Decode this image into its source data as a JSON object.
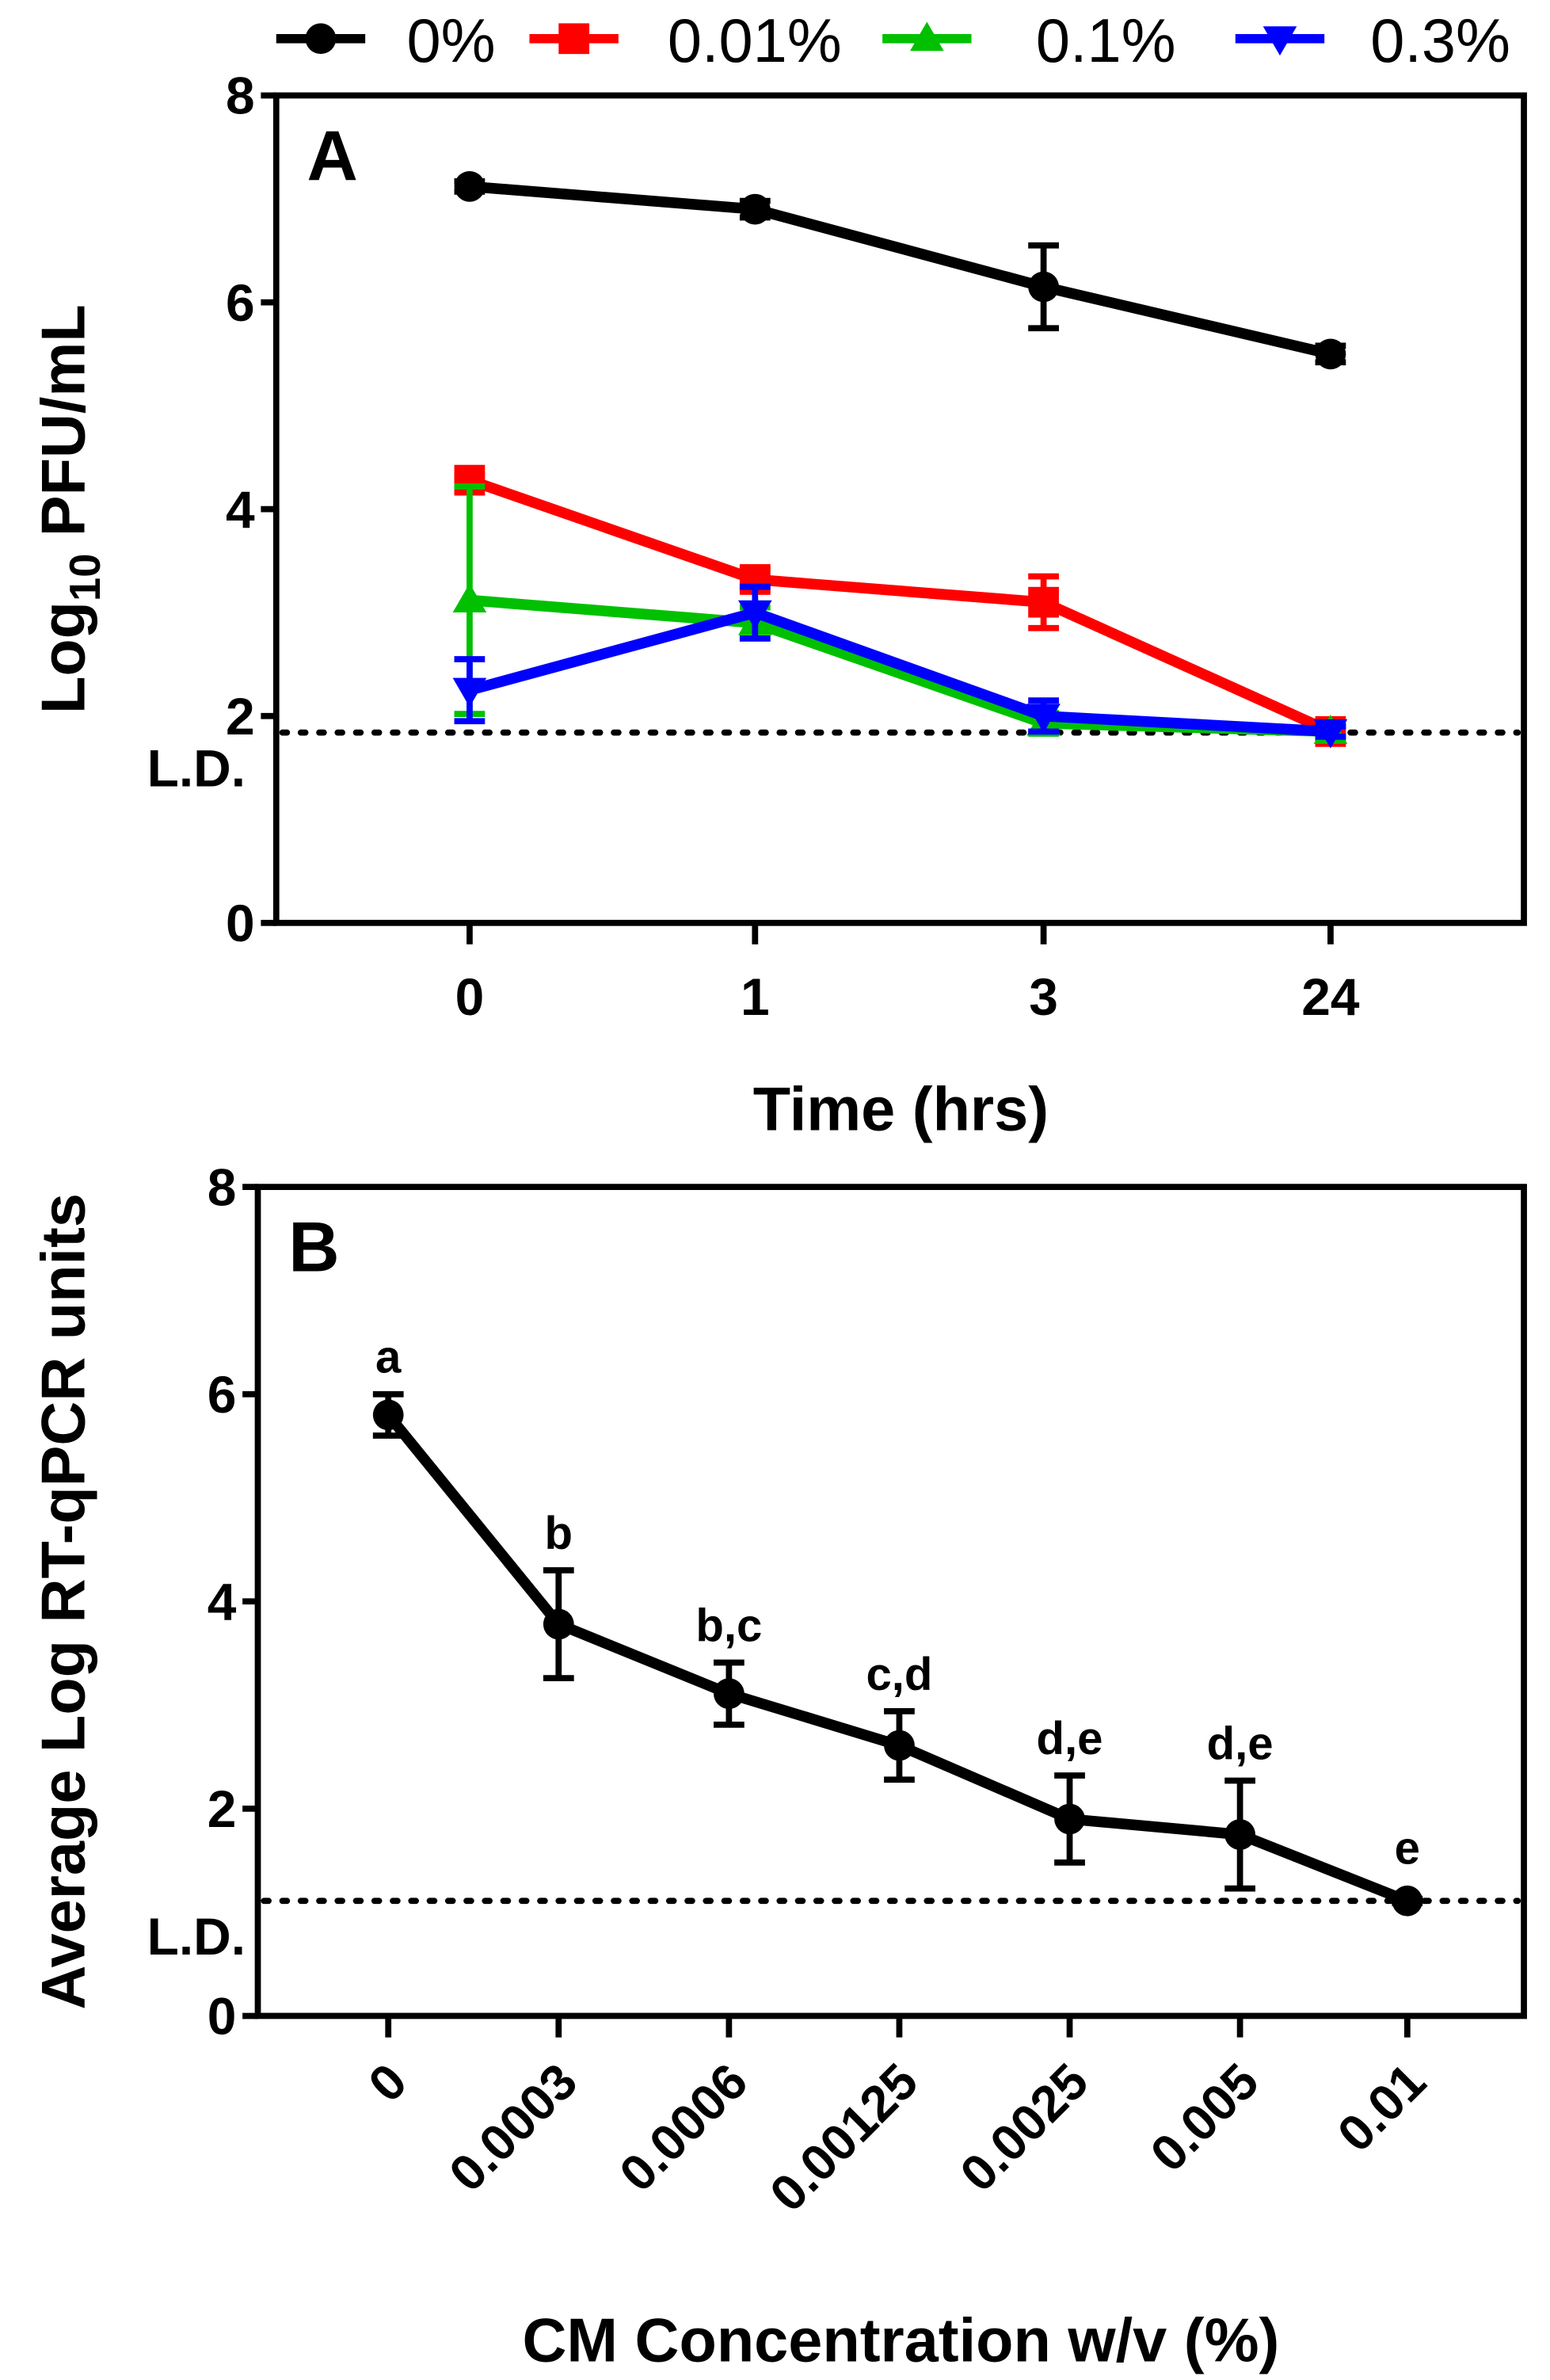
{
  "legend": [
    {
      "label": "0%",
      "color": "#000000",
      "marker": "circle"
    },
    {
      "label": "0.01%",
      "color": "#ff0000",
      "marker": "square"
    },
    {
      "label": "0.1%",
      "color": "#00c000",
      "marker": "triangle-up"
    },
    {
      "label": "0.3%",
      "color": "#0000ff",
      "marker": "triangle-down"
    }
  ],
  "chart_data": [
    {
      "type": "line",
      "panel_label": "A",
      "xlabel": "Time (hrs)",
      "ylabel_main": "Log",
      "ylabel_sub": "10",
      "ylabel_rest": " PFU/mL",
      "categories": [
        "0",
        "1",
        "3",
        "24"
      ],
      "ylim": [
        0,
        8
      ],
      "yticks": [
        "0",
        "2",
        "4",
        "6",
        "8"
      ],
      "detection_limit": 1.84,
      "detection_limit_label": "L.D.",
      "series": [
        {
          "name": "0%",
          "color": "#000000",
          "marker": "circle",
          "values": [
            7.12,
            6.9,
            6.15,
            5.5
          ],
          "errors": [
            0.05,
            0.08,
            0.4,
            0.08
          ]
        },
        {
          "name": "0.01%",
          "color": "#ff0000",
          "marker": "square",
          "values": [
            4.28,
            3.32,
            3.1,
            1.85
          ],
          "errors": [
            0.05,
            0.1,
            0.25,
            0.05
          ]
        },
        {
          "name": "0.1%",
          "color": "#00c000",
          "marker": "triangle-up",
          "values": [
            3.12,
            2.9,
            1.93,
            1.85
          ],
          "errors": [
            1.1,
            0.15,
            0.1,
            0.05
          ]
        },
        {
          "name": "0.3%",
          "color": "#0000ff",
          "marker": "triangle-down",
          "values": [
            2.25,
            3.0,
            2.0,
            1.85
          ],
          "errors": [
            0.3,
            0.25,
            0.15,
            0.05
          ]
        }
      ]
    },
    {
      "type": "line",
      "panel_label": "B",
      "xlabel": "CM Concentration w/v (%)",
      "ylabel": "Average Log RT-qPCR units",
      "categories": [
        "0",
        "0.0003",
        "0.0006",
        "0.00125",
        "0.0025",
        "0.005",
        "0.01"
      ],
      "ylim": [
        0,
        8
      ],
      "yticks": [
        "0",
        "2",
        "4",
        "6",
        "8"
      ],
      "detection_limit": 1.11,
      "detection_limit_label": "L.D.",
      "series": [
        {
          "name": "RT-qPCR",
          "color": "#000000",
          "marker": "circle",
          "values": [
            5.8,
            3.78,
            3.11,
            2.61,
            1.9,
            1.75,
            1.11
          ],
          "errors": [
            0.2,
            0.52,
            0.3,
            0.33,
            0.42,
            0.52,
            0.02
          ],
          "annotations": [
            "a",
            "b",
            "b,c",
            "c,d",
            "d,e",
            "d,e",
            "e"
          ]
        }
      ]
    }
  ]
}
